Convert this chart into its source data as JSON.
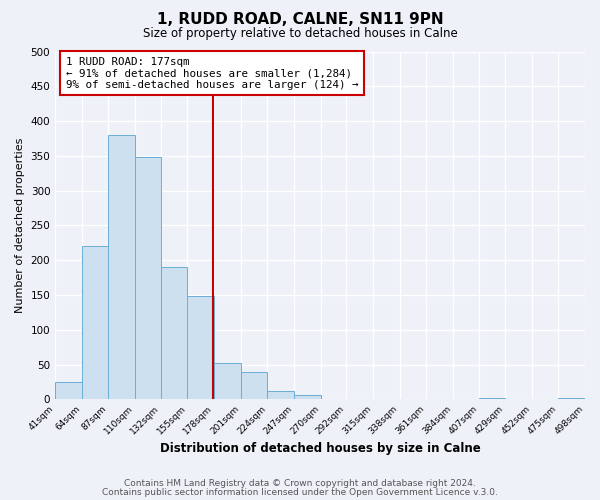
{
  "title": "1, RUDD ROAD, CALNE, SN11 9PN",
  "subtitle": "Size of property relative to detached houses in Calne",
  "xlabel": "Distribution of detached houses by size in Calne",
  "ylabel": "Number of detached properties",
  "bin_edges": [
    41,
    64,
    87,
    110,
    132,
    155,
    178,
    201,
    224,
    247,
    270,
    292,
    315,
    338,
    361,
    384,
    407,
    429,
    452,
    475,
    498
  ],
  "bin_counts": [
    25,
    220,
    380,
    348,
    190,
    148,
    53,
    40,
    12,
    6,
    0,
    0,
    0,
    0,
    0,
    0,
    2,
    0,
    0,
    2
  ],
  "bar_color": "#cce0f0",
  "bar_edge_color": "#6aaed6",
  "vline_x": 177,
  "vline_color": "#cc0000",
  "annotation_title": "1 RUDD ROAD: 177sqm",
  "annotation_line1": "← 91% of detached houses are smaller (1,284)",
  "annotation_line2": "9% of semi-detached houses are larger (124) →",
  "annotation_box_color": "#cc0000",
  "ylim": [
    0,
    500
  ],
  "yticks": [
    0,
    50,
    100,
    150,
    200,
    250,
    300,
    350,
    400,
    450,
    500
  ],
  "tick_labels": [
    "41sqm",
    "64sqm",
    "87sqm",
    "110sqm",
    "132sqm",
    "155sqm",
    "178sqm",
    "201sqm",
    "224sqm",
    "247sqm",
    "270sqm",
    "292sqm",
    "315sqm",
    "338sqm",
    "361sqm",
    "384sqm",
    "407sqm",
    "429sqm",
    "452sqm",
    "475sqm",
    "498sqm"
  ],
  "footer1": "Contains HM Land Registry data © Crown copyright and database right 2024.",
  "footer2": "Contains public sector information licensed under the Open Government Licence v.3.0.",
  "background_color": "#eef2f8",
  "plot_bg_color": "#eef2f8",
  "grid_color": "#ffffff"
}
